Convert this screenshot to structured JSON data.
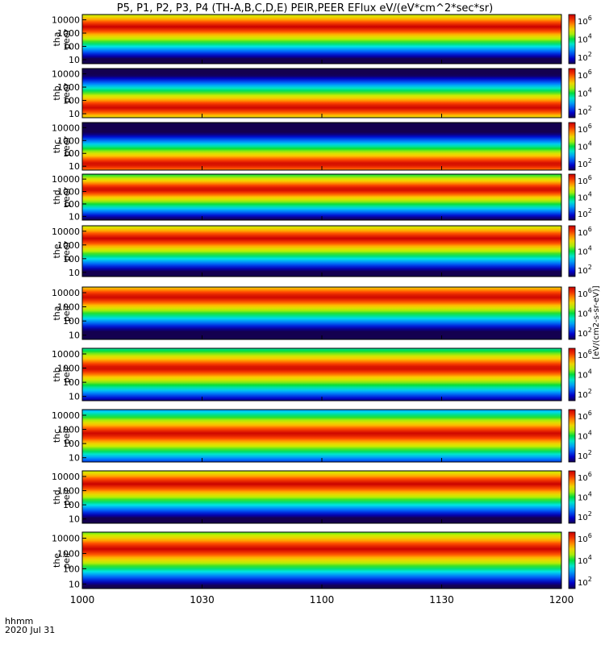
{
  "chart_data": {
    "type": "heatmap",
    "title": "P5, P1, P2, P3, P4 (TH-A,B,C,D,E) PEIR,PEER EFlux eV/(eV*cm^2*sec*sr)",
    "x_axis": {
      "label_line1": "hhmm",
      "label_line2": "2020 Jul 31",
      "ticks": [
        "1000",
        "1030",
        "1100",
        "1130",
        "1200"
      ],
      "range": [
        "10:00",
        "12:00"
      ]
    },
    "y_axis": {
      "scale": "log",
      "ticks": [
        "10",
        "100",
        "1000",
        "10000"
      ],
      "range_ev": [
        5,
        25000
      ]
    },
    "colorbar": {
      "scale": "log",
      "ticks": [
        "10^2",
        "10^4",
        "10^6"
      ],
      "label": "[eV/(cm2-s-sr-eV)]"
    },
    "panels": [
      {
        "probe": "tha",
        "species": "peer",
        "label_line1": "tha",
        "label_line2": "peer",
        "peak_energy_ev": 3000
      },
      {
        "probe": "thb",
        "species": "peer",
        "label_line1": "thb",
        "label_line2": "peer",
        "peak_energy_ev": 30
      },
      {
        "probe": "thc",
        "species": "peer",
        "label_line1": "thc",
        "label_line2": "peer",
        "peak_energy_ev": 15
      },
      {
        "probe": "thd",
        "species": "peer",
        "label_line1": "thd",
        "label_line2": "peer",
        "peak_energy_ev": 1500
      },
      {
        "probe": "the",
        "species": "peer",
        "label_line1": "the",
        "label_line2": "peer",
        "peak_energy_ev": 3000
      },
      {
        "probe": "tha",
        "species": "peir",
        "label_line1": "tha",
        "label_line2": "peir",
        "peak_energy_ev": 5000
      },
      {
        "probe": "thb",
        "species": "peir",
        "label_line1": "thb",
        "label_line2": "peir",
        "peak_energy_ev": 1000
      },
      {
        "probe": "thc",
        "species": "peir",
        "label_line1": "thc",
        "label_line2": "peir",
        "peak_energy_ev": 500
      },
      {
        "probe": "thd",
        "species": "peir",
        "label_line1": "thd",
        "label_line2": "peir",
        "peak_energy_ev": 3000
      },
      {
        "probe": "the",
        "species": "peir",
        "label_line1": "the",
        "label_line2": "peir",
        "peak_energy_ev": 2000
      }
    ]
  }
}
